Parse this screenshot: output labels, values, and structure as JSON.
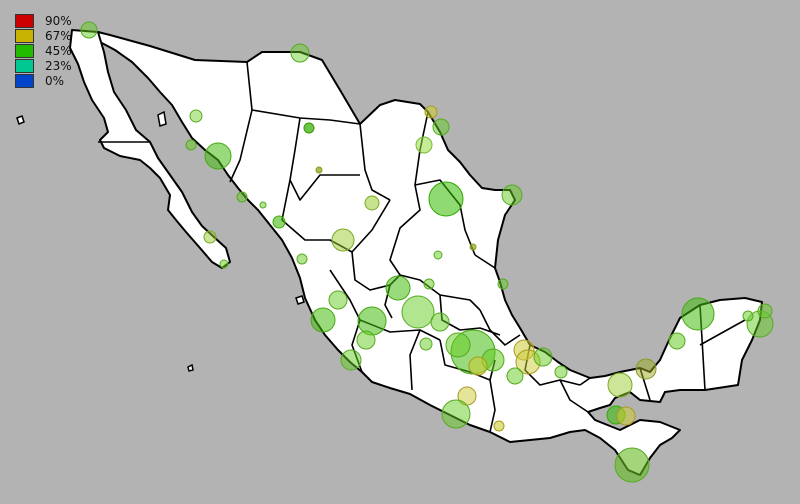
{
  "legend": {
    "items": [
      {
        "label": "90%",
        "color": "#cc0000"
      },
      {
        "label": "67%",
        "color": "#c8b400"
      },
      {
        "label": "45%",
        "color": "#22bb00"
      },
      {
        "label": "23%",
        "color": "#00c890"
      },
      {
        "label": "0%",
        "color": "#0044cc"
      }
    ]
  },
  "colors": {
    "background": "#b3b3b3",
    "land": "#ffffff",
    "border": "#000000",
    "bubble_green": "#66cc22",
    "bubble_yellow": "#cccc33"
  }
}
